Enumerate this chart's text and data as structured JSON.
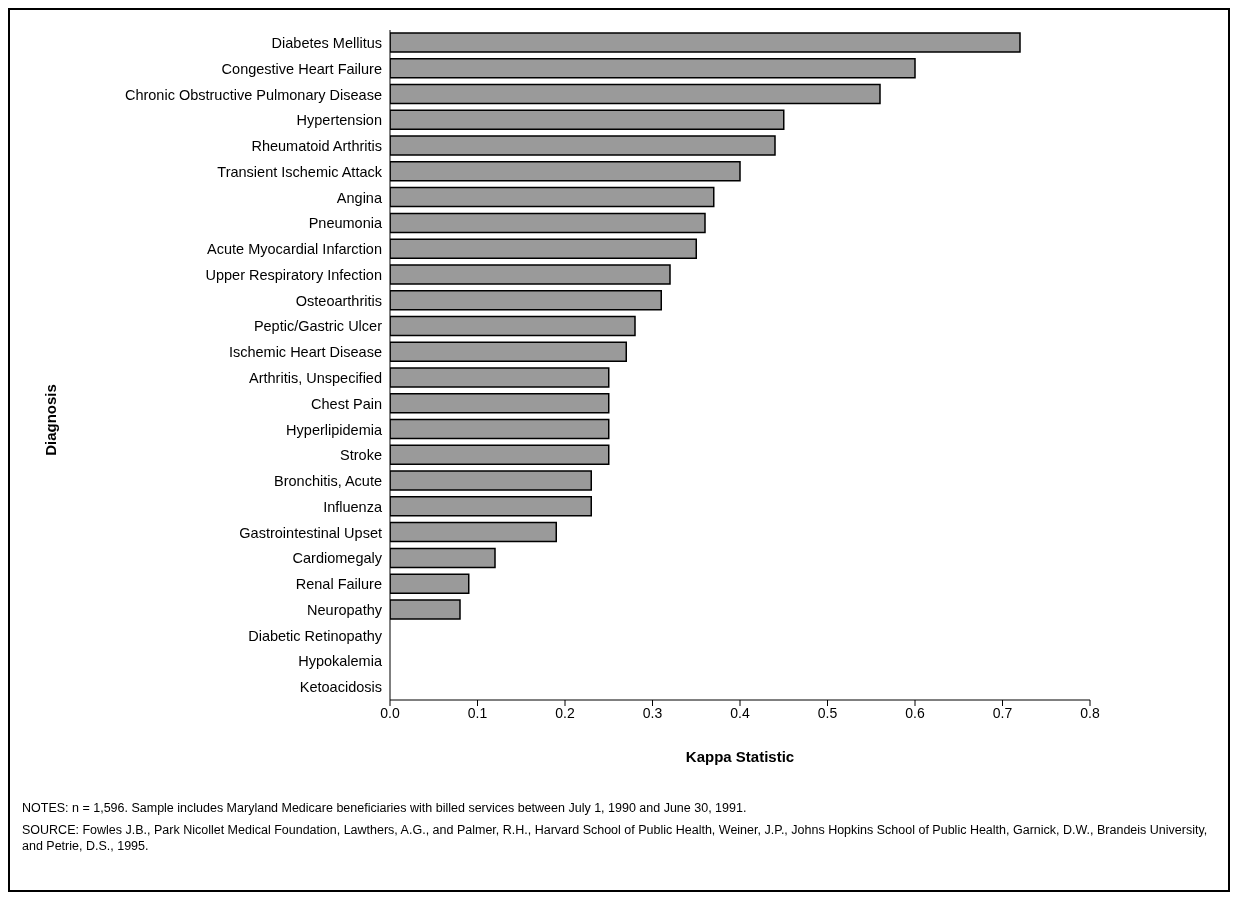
{
  "chart_data": {
    "type": "bar",
    "orientation": "horizontal",
    "xlabel": "Kappa Statistic",
    "ylabel": "Diagnosis",
    "categories": [
      "Diabetes Mellitus",
      "Congestive Heart Failure",
      "Chronic Obstructive Pulmonary Disease",
      "Hypertension",
      "Rheumatoid Arthritis",
      "Transient Ischemic Attack",
      "Angina",
      "Pneumonia",
      "Acute Myocardial Infarction",
      "Upper Respiratory Infection",
      "Osteoarthritis",
      "Peptic/Gastric Ulcer",
      "Ischemic Heart Disease",
      "Arthritis, Unspecified",
      "Chest Pain",
      "Hyperlipidemia",
      "Stroke",
      "Bronchitis, Acute",
      "Influenza",
      "Gastrointestinal Upset",
      "Cardiomegaly",
      "Renal Failure",
      "Neuropathy",
      "Diabetic Retinopathy",
      "Hypokalemia",
      "Ketoacidosis"
    ],
    "values": [
      0.72,
      0.6,
      0.56,
      0.45,
      0.44,
      0.4,
      0.37,
      0.36,
      0.35,
      0.32,
      0.31,
      0.28,
      0.27,
      0.25,
      0.25,
      0.25,
      0.25,
      0.23,
      0.23,
      0.19,
      0.12,
      0.09,
      0.08,
      0,
      0,
      0
    ],
    "color": "#9a9a9a",
    "xlim": [
      0,
      0.8
    ],
    "xticks": [
      {
        "value": 0,
        "label": "0.0"
      },
      0.1,
      0.2,
      0.3,
      0.4,
      0.5,
      0.6,
      0.7,
      0.8
    ],
    "grid": false,
    "legend": false,
    "annotations": [
      "NOTES: n = 1,596. Sample includes Maryland Medicare beneficiaries with billed services between July 1, 1990 and June 30, 1991.",
      "SOURCE: Fowles J.B., Park Nicollet Medical Foundation, Lawthers, A.G., and Palmer, R.H., Harvard School of Public Health, Weiner, J.P., Johns Hopkins School of Public Health, Garnick, D.W., Brandeis University, and Petrie, D.S., 1995."
    ]
  }
}
